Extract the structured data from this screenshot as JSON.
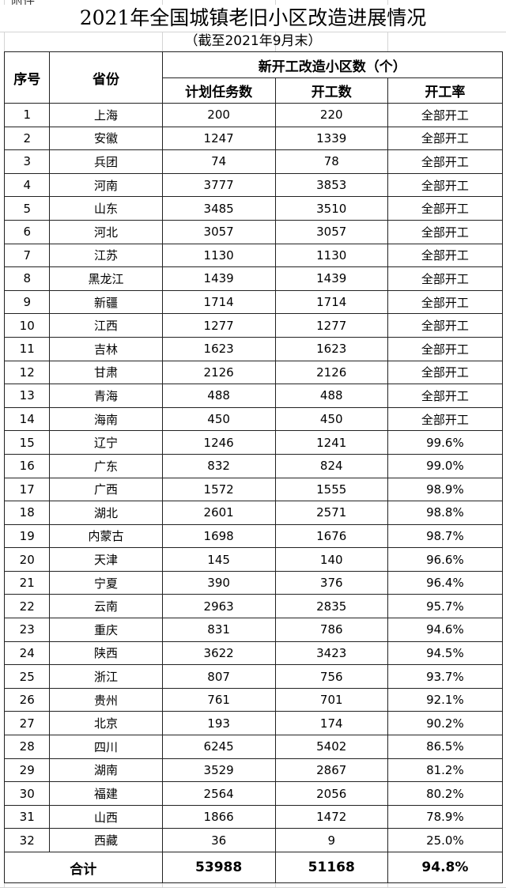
{
  "attachment_label": "附件",
  "title": "2021年全国城镇老旧小区改造进展情况",
  "subtitle": "（截至2021年9月末）",
  "headers": {
    "index": "序号",
    "province": "省份",
    "group": "新开工改造小区数（个）",
    "planned": "计划任务数",
    "started": "开工数",
    "rate": "开工率"
  },
  "rows": [
    [
      "1",
      "上海",
      "200",
      "220",
      "全部开工"
    ],
    [
      "2",
      "安徽",
      "1247",
      "1339",
      "全部开工"
    ],
    [
      "3",
      "兵团",
      "74",
      "78",
      "全部开工"
    ],
    [
      "4",
      "河南",
      "3777",
      "3853",
      "全部开工"
    ],
    [
      "5",
      "山东",
      "3485",
      "3510",
      "全部开工"
    ],
    [
      "6",
      "河北",
      "3057",
      "3057",
      "全部开工"
    ],
    [
      "7",
      "江苏",
      "1130",
      "1130",
      "全部开工"
    ],
    [
      "8",
      "黑龙江",
      "1439",
      "1439",
      "全部开工"
    ],
    [
      "9",
      "新疆",
      "1714",
      "1714",
      "全部开工"
    ],
    [
      "10",
      "江西",
      "1277",
      "1277",
      "全部开工"
    ],
    [
      "11",
      "吉林",
      "1623",
      "1623",
      "全部开工"
    ],
    [
      "12",
      "甘肃",
      "2126",
      "2126",
      "全部开工"
    ],
    [
      "13",
      "青海",
      "488",
      "488",
      "全部开工"
    ],
    [
      "14",
      "海南",
      "450",
      "450",
      "全部开工"
    ],
    [
      "15",
      "辽宁",
      "1246",
      "1241",
      "99.6%"
    ],
    [
      "16",
      "广东",
      "832",
      "824",
      "99.0%"
    ],
    [
      "17",
      "广西",
      "1572",
      "1555",
      "98.9%"
    ],
    [
      "18",
      "湖北",
      "2601",
      "2571",
      "98.8%"
    ],
    [
      "19",
      "内蒙古",
      "1698",
      "1676",
      "98.7%"
    ],
    [
      "20",
      "天津",
      "145",
      "140",
      "96.6%"
    ],
    [
      "21",
      "宁夏",
      "390",
      "376",
      "96.4%"
    ],
    [
      "22",
      "云南",
      "2963",
      "2835",
      "95.7%"
    ],
    [
      "23",
      "重庆",
      "831",
      "786",
      "94.6%"
    ],
    [
      "24",
      "陕西",
      "3622",
      "3423",
      "94.5%"
    ],
    [
      "25",
      "浙江",
      "807",
      "756",
      "93.7%"
    ],
    [
      "26",
      "贵州",
      "761",
      "701",
      "92.1%"
    ],
    [
      "27",
      "北京",
      "193",
      "174",
      "90.2%"
    ],
    [
      "28",
      "四川",
      "6245",
      "5402",
      "86.5%"
    ],
    [
      "29",
      "湖南",
      "3529",
      "2867",
      "81.2%"
    ],
    [
      "30",
      "福建",
      "2564",
      "2056",
      "80.2%"
    ],
    [
      "31",
      "山西",
      "1866",
      "1472",
      "78.9%"
    ],
    [
      "32",
      "西藏",
      "36",
      "9",
      "25.0%"
    ]
  ],
  "total": {
    "label": "合计",
    "planned": "53988",
    "started": "51168",
    "rate": "94.8%"
  }
}
